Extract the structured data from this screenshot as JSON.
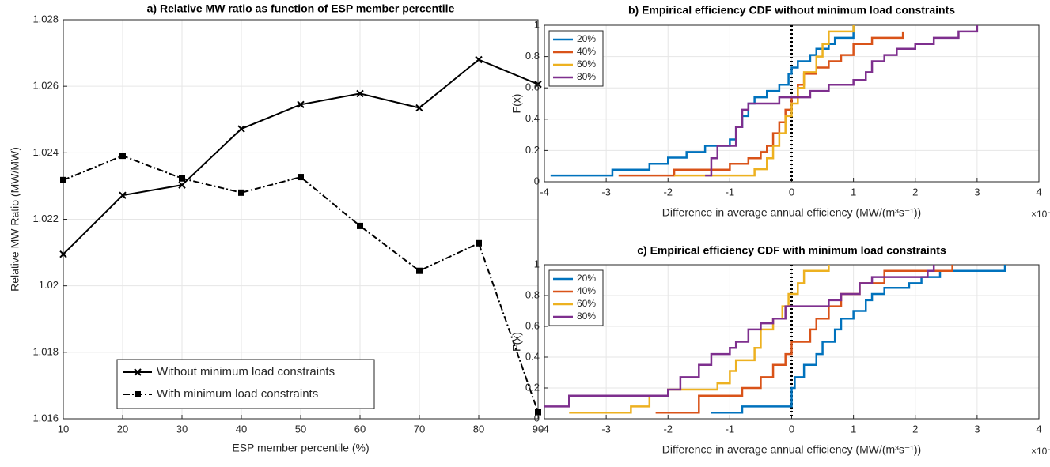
{
  "chart_data": [
    {
      "type": "line",
      "title": "a) Relative MW ratio as function of ESP member percentile",
      "xlabel": "ESP member percentile (%)",
      "ylabel": "Relative MW Ratio (MW/MW)",
      "x": [
        10,
        20,
        30,
        40,
        50,
        60,
        70,
        80,
        90
      ],
      "xlim": [
        10,
        90
      ],
      "xticks": [
        10,
        20,
        30,
        40,
        50,
        60,
        70,
        80,
        90
      ],
      "ylim": [
        1.016,
        1.028
      ],
      "yticks": [
        1.016,
        1.018,
        1.02,
        1.022,
        1.024,
        1.026,
        1.028
      ],
      "grid": true,
      "legend": "bottom",
      "series": [
        {
          "name": "Without minimum load constraints",
          "color": "#000000",
          "marker": "x",
          "linestyle": "solid",
          "values": [
            1.02095,
            1.02272,
            1.02303,
            1.02472,
            1.02545,
            1.02578,
            1.02535,
            1.0268,
            1.02606
          ]
        },
        {
          "name": "With minimum load constraints",
          "color": "#000000",
          "marker": "square",
          "linestyle": "dashdot",
          "values": [
            1.02318,
            1.02391,
            1.02323,
            1.0228,
            1.02327,
            1.0218,
            1.02045,
            1.02128,
            1.0162
          ]
        }
      ]
    },
    {
      "type": "step",
      "title": "b) Empirical efficiency CDF without minimum load constraints",
      "xlabel": "Difference in average annual efficiency (MW/(m³s⁻¹))",
      "ylabel": "F(x)",
      "x_multiplier": "×10⁻³",
      "xlim": [
        -4,
        4
      ],
      "xticks": [
        -4,
        -3,
        -2,
        -1,
        0,
        1,
        2,
        3,
        4
      ],
      "ylim": [
        0,
        1
      ],
      "yticks": [
        0,
        0.2,
        0.4,
        0.6,
        0.8,
        1
      ],
      "grid": true,
      "legend": "upper left",
      "vline": 0,
      "series": [
        {
          "name": "20%",
          "color": "#0072bd",
          "x": [
            -3.9,
            -2.9,
            -2.3,
            -2.0,
            -1.7,
            -1.4,
            -1.0,
            -0.9,
            -0.8,
            -0.7,
            -0.6,
            -0.4,
            -0.2,
            -0.05,
            0.0,
            0.1,
            0.3,
            0.4,
            0.6,
            0.7,
            1.0
          ],
          "values": [
            0.04,
            0.077,
            0.115,
            0.154,
            0.19,
            0.23,
            0.27,
            0.35,
            0.42,
            0.5,
            0.54,
            0.58,
            0.62,
            0.69,
            0.73,
            0.77,
            0.81,
            0.85,
            0.88,
            0.92,
            1
          ]
        },
        {
          "name": "40%",
          "color": "#d95319",
          "x": [
            -2.8,
            -1.9,
            -1.0,
            -0.7,
            -0.5,
            -0.4,
            -0.3,
            -0.2,
            -0.1,
            0.0,
            0.1,
            0.2,
            0.4,
            0.6,
            0.8,
            1.0,
            1.3,
            1.8
          ],
          "values": [
            0.04,
            0.077,
            0.115,
            0.15,
            0.19,
            0.23,
            0.31,
            0.38,
            0.46,
            0.54,
            0.62,
            0.69,
            0.73,
            0.77,
            0.81,
            0.88,
            0.92,
            0.96
          ]
        },
        {
          "name": "60%",
          "color": "#edb120",
          "x": [
            -1.9,
            -0.6,
            -0.4,
            -0.3,
            -0.2,
            -0.1,
            0.0,
            0.1,
            0.2,
            0.4,
            0.5,
            0.6,
            1.0
          ],
          "values": [
            0.04,
            0.08,
            0.15,
            0.23,
            0.31,
            0.42,
            0.5,
            0.6,
            0.7,
            0.8,
            0.88,
            0.96,
            1
          ]
        },
        {
          "name": "80%",
          "color": "#7e2f8e",
          "x": [
            -1.4,
            -1.3,
            -1.2,
            -0.9,
            -0.8,
            -0.7,
            -0.2,
            0.3,
            0.6,
            1.0,
            1.2,
            1.3,
            1.5,
            1.7,
            2.0,
            2.3,
            2.7,
            3.0
          ],
          "values": [
            0.04,
            0.15,
            0.23,
            0.35,
            0.46,
            0.5,
            0.54,
            0.58,
            0.62,
            0.65,
            0.7,
            0.77,
            0.81,
            0.85,
            0.88,
            0.92,
            0.96,
            1
          ]
        }
      ]
    },
    {
      "type": "step",
      "title": "c) Empirical efficiency CDF with minimum load constraints",
      "xlabel": "Difference in average annual efficiency (MW/(m³s⁻¹))",
      "ylabel": "F(x)",
      "x_multiplier": "×10⁻³",
      "xlim": [
        -4,
        4
      ],
      "xticks": [
        -4,
        -3,
        -2,
        -1,
        0,
        1,
        2,
        3,
        4
      ],
      "ylim": [
        0,
        1
      ],
      "yticks": [
        0,
        0.2,
        0.4,
        0.6,
        0.8,
        1
      ],
      "grid": true,
      "legend": "upper left",
      "vline": 0,
      "series": [
        {
          "name": "20%",
          "color": "#0072bd",
          "x": [
            -1.3,
            -0.8,
            0.0,
            0.05,
            0.2,
            0.4,
            0.5,
            0.7,
            0.8,
            1.0,
            1.2,
            1.3,
            1.5,
            1.9,
            2.1,
            2.4,
            3.45
          ],
          "values": [
            0.04,
            0.08,
            0.2,
            0.27,
            0.35,
            0.42,
            0.5,
            0.58,
            0.65,
            0.7,
            0.77,
            0.81,
            0.85,
            0.88,
            0.92,
            0.96,
            1
          ]
        },
        {
          "name": "40%",
          "color": "#d95319",
          "x": [
            -2.2,
            -1.5,
            -0.8,
            -0.5,
            -0.3,
            -0.1,
            0.0,
            0.3,
            0.4,
            0.6,
            0.8,
            1.1,
            1.5,
            2.6
          ],
          "values": [
            0.04,
            0.15,
            0.2,
            0.27,
            0.35,
            0.42,
            0.5,
            0.58,
            0.65,
            0.73,
            0.81,
            0.88,
            0.96,
            1
          ]
        },
        {
          "name": "60%",
          "color": "#edb120",
          "x": [
            -3.6,
            -2.6,
            -2.3,
            -2.0,
            -1.2,
            -1.0,
            -0.9,
            -0.6,
            -0.5,
            -0.3,
            -0.15,
            -0.05,
            0.1,
            0.2,
            0.6
          ],
          "values": [
            0.04,
            0.08,
            0.15,
            0.19,
            0.23,
            0.31,
            0.38,
            0.46,
            0.58,
            0.65,
            0.73,
            0.81,
            0.88,
            0.96,
            1
          ]
        },
        {
          "name": "80%",
          "color": "#7e2f8e",
          "x": [
            -4,
            -3.6,
            -2.0,
            -1.8,
            -1.5,
            -1.3,
            -1.0,
            -0.9,
            -0.7,
            -0.5,
            -0.3,
            -0.1,
            0.6,
            0.8,
            1.1,
            1.3,
            2.2,
            2.3
          ],
          "values": [
            0.08,
            0.15,
            0.19,
            0.27,
            0.35,
            0.42,
            0.46,
            0.5,
            0.58,
            0.62,
            0.65,
            0.73,
            0.77,
            0.81,
            0.88,
            0.92,
            0.96,
            1
          ]
        }
      ]
    }
  ]
}
